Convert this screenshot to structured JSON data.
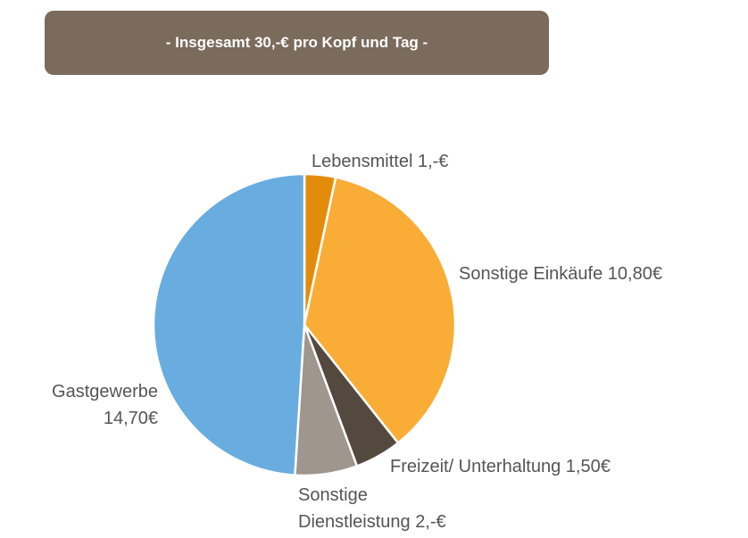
{
  "chart_data": {
    "type": "pie",
    "title": "- Insgesamt 30,-€ pro Kopf und Tag -",
    "categories": [
      "Lebensmittel",
      "Sonstige Einkäufe",
      "Freizeit/ Unterhaltung",
      "Sonstige Dienstleistung",
      "Gastgewerbe"
    ],
    "values": [
      1,
      10.8,
      1.5,
      2,
      14.7
    ],
    "value_labels": [
      "1,-€",
      "10,80€",
      "1,50€",
      "2,-€",
      "14,70€"
    ],
    "colors": [
      "#e38c0b",
      "#f9ad36",
      "#54493f",
      "#9f968d",
      "#69ade0"
    ]
  }
}
